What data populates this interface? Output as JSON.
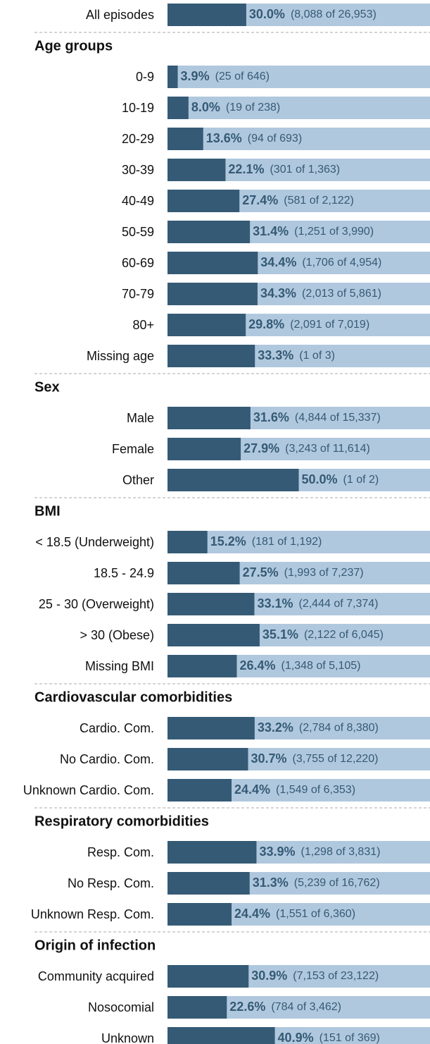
{
  "chart_data": {
    "type": "bar",
    "xlim": [
      0,
      100
    ],
    "colors": {
      "bar": "#355a75",
      "track": "#b0c8de"
    },
    "groups": [
      {
        "categories": [
          "All episodes"
        ],
        "values": [
          30.0
        ],
        "value_labels": [
          "30.0%"
        ],
        "details": [
          "(8,088 of 26,953)"
        ]
      },
      {
        "title": "Age groups",
        "categories": [
          "0-9",
          "10-19",
          "20-29",
          "30-39",
          "40-49",
          "50-59",
          "60-69",
          "70-79",
          "80+",
          "Missing age"
        ],
        "values": [
          3.9,
          8.0,
          13.6,
          22.1,
          27.4,
          31.4,
          34.4,
          34.3,
          29.8,
          33.3
        ],
        "value_labels": [
          "3.9%",
          "8.0%",
          "13.6%",
          "22.1%",
          "27.4%",
          "31.4%",
          "34.4%",
          "34.3%",
          "29.8%",
          "33.3%"
        ],
        "details": [
          "(25 of 646)",
          "(19 of 238)",
          "(94 of 693)",
          "(301 of 1,363)",
          "(581 of 2,122)",
          "(1,251 of 3,990)",
          "(1,706 of 4,954)",
          "(2,013 of 5,861)",
          "(2,091 of 7,019)",
          "(1 of 3)"
        ]
      },
      {
        "title": "Sex",
        "categories": [
          "Male",
          "Female",
          "Other"
        ],
        "values": [
          31.6,
          27.9,
          50.0
        ],
        "value_labels": [
          "31.6%",
          "27.9%",
          "50.0%"
        ],
        "details": [
          "(4,844 of 15,337)",
          "(3,243 of 11,614)",
          "(1 of 2)"
        ]
      },
      {
        "title": "BMI",
        "categories": [
          "< 18.5 (Underweight)",
          "18.5 - 24.9",
          "25 - 30 (Overweight)",
          "> 30 (Obese)",
          "Missing BMI"
        ],
        "values": [
          15.2,
          27.5,
          33.1,
          35.1,
          26.4
        ],
        "value_labels": [
          "15.2%",
          "27.5%",
          "33.1%",
          "35.1%",
          "26.4%"
        ],
        "details": [
          "(181 of 1,192)",
          "(1,993 of 7,237)",
          "(2,444 of 7,374)",
          "(2,122 of 6,045)",
          "(1,348 of 5,105)"
        ]
      },
      {
        "title": "Cardiovascular comorbidities",
        "categories": [
          "Cardio. Com.",
          "No Cardio. Com.",
          "Unknown Cardio. Com."
        ],
        "values": [
          33.2,
          30.7,
          24.4
        ],
        "value_labels": [
          "33.2%",
          "30.7%",
          "24.4%"
        ],
        "details": [
          "(2,784 of 8,380)",
          "(3,755 of 12,220)",
          "(1,549 of 6,353)"
        ]
      },
      {
        "title": "Respiratory comorbidities",
        "categories": [
          "Resp. Com.",
          "No Resp. Com.",
          "Unknown Resp. Com."
        ],
        "values": [
          33.9,
          31.3,
          24.4
        ],
        "value_labels": [
          "33.9%",
          "31.3%",
          "24.4%"
        ],
        "details": [
          "(1,298 of 3,831)",
          "(5,239 of 16,762)",
          "(1,551 of 6,360)"
        ]
      },
      {
        "title": "Origin of infection",
        "categories": [
          "Community acquired",
          "Nosocomial",
          "Unknown"
        ],
        "values": [
          30.9,
          22.6,
          40.9
        ],
        "value_labels": [
          "30.9%",
          "22.6%",
          "40.9%"
        ],
        "details": [
          "(7,153 of 23,122)",
          "(784 of 3,462)",
          "(151 of 369)"
        ]
      }
    ]
  }
}
